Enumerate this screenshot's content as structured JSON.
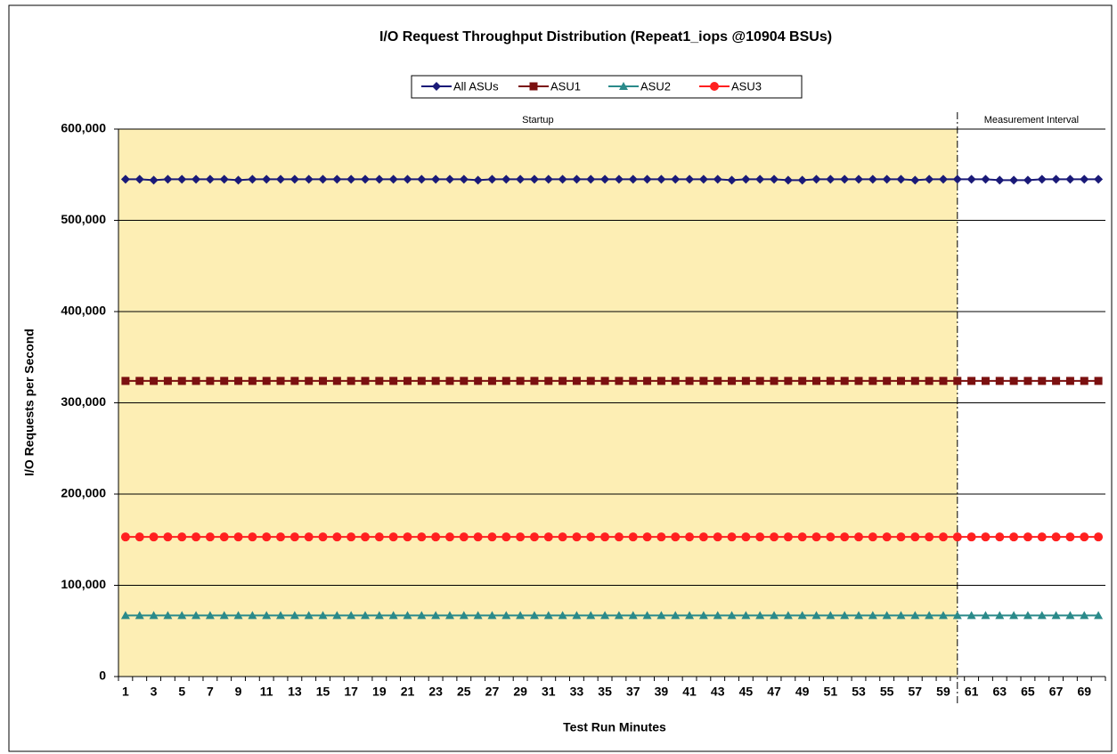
{
  "chart_data": {
    "type": "line",
    "title": "I/O Request Throughput Distribution (Repeat1_iops @10904 BSUs)",
    "x_label": "Test Run Minutes",
    "y_label": "I/O Requests per Second",
    "annotations": {
      "startup": "Startup",
      "measurement": "Measurement Interval"
    },
    "divider": 60,
    "shade_color": "#fdeeb4",
    "categories": [
      "1",
      null,
      "3",
      null,
      "5",
      null,
      "7",
      null,
      "9",
      null,
      "11",
      null,
      "13",
      null,
      "15",
      null,
      "17",
      null,
      "19",
      null,
      "21",
      null,
      "23",
      null,
      "25",
      null,
      "27",
      null,
      "29",
      null,
      "31",
      null,
      "33",
      null,
      "35",
      null,
      "37",
      null,
      "39",
      null,
      "41",
      null,
      "43",
      null,
      "45",
      null,
      "47",
      null,
      "49",
      null,
      "51",
      null,
      "53",
      null,
      "55",
      null,
      "57",
      null,
      "59",
      null,
      "61",
      null,
      "63",
      null,
      "65",
      null,
      "67",
      null,
      "69",
      null
    ],
    "ylim": [
      0,
      600000
    ],
    "yticks": [
      0,
      {
        "value": 100000,
        "label": "100,000"
      },
      {
        "value": 200000,
        "label": "200,000"
      },
      {
        "value": 300000,
        "label": "300,000"
      },
      {
        "value": 400000,
        "label": "400,000"
      },
      {
        "value": 500000,
        "label": "500,000"
      },
      {
        "value": 600000,
        "label": "600,000"
      }
    ],
    "grid": true,
    "series": [
      {
        "name": "All ASUs",
        "color": "#1a1a78",
        "marker": "diamond",
        "values": [
          545000,
          545000,
          544000,
          545000,
          545000,
          545000,
          545000,
          545000,
          544000,
          545000,
          545000,
          545000,
          545000,
          545000,
          545000,
          545000,
          545000,
          545000,
          545000,
          545000,
          545000,
          545000,
          545000,
          545000,
          545000,
          544000,
          545000,
          545000,
          545000,
          545000,
          545000,
          545000,
          545000,
          545000,
          545000,
          545000,
          545000,
          545000,
          545000,
          545000,
          545000,
          545000,
          545000,
          544000,
          545000,
          545000,
          545000,
          544000,
          544000,
          545000,
          545000,
          545000,
          545000,
          545000,
          545000,
          545000,
          544000,
          545000,
          545000,
          545000,
          545000,
          545000,
          544000,
          544000,
          544000,
          545000,
          545000,
          545000,
          545000,
          545000
        ]
      },
      {
        "name": "ASU1",
        "color": "#7b1010",
        "marker": "square",
        "values": [
          324000,
          324000,
          324000,
          324000,
          324000,
          324000,
          324000,
          324000,
          324000,
          324000,
          324000,
          324000,
          324000,
          324000,
          324000,
          324000,
          324000,
          324000,
          324000,
          324000,
          324000,
          324000,
          324000,
          324000,
          324000,
          324000,
          324000,
          324000,
          324000,
          324000,
          324000,
          324000,
          324000,
          324000,
          324000,
          324000,
          324000,
          324000,
          324000,
          324000,
          324000,
          324000,
          324000,
          324000,
          324000,
          324000,
          324000,
          324000,
          324000,
          324000,
          324000,
          324000,
          324000,
          324000,
          324000,
          324000,
          324000,
          324000,
          324000,
          324000,
          324000,
          324000,
          324000,
          324000,
          324000,
          324000,
          324000,
          324000,
          324000,
          324000
        ]
      },
      {
        "name": "ASU2",
        "color": "#2a8a8a",
        "marker": "triangle",
        "values": [
          67000,
          67000,
          67000,
          67000,
          67000,
          67000,
          67000,
          67000,
          67000,
          67000,
          67000,
          67000,
          67000,
          67000,
          67000,
          67000,
          67000,
          67000,
          67000,
          67000,
          67000,
          67000,
          67000,
          67000,
          67000,
          67000,
          67000,
          67000,
          67000,
          67000,
          67000,
          67000,
          67000,
          67000,
          67000,
          67000,
          67000,
          67000,
          67000,
          67000,
          67000,
          67000,
          67000,
          67000,
          67000,
          67000,
          67000,
          67000,
          67000,
          67000,
          67000,
          67000,
          67000,
          67000,
          67000,
          67000,
          67000,
          67000,
          67000,
          67000,
          67000,
          67000,
          67000,
          67000,
          67000,
          67000,
          67000,
          67000,
          67000,
          67000
        ]
      },
      {
        "name": "ASU3",
        "color": "#ff2020",
        "marker": "circle",
        "values": [
          153000,
          153000,
          153000,
          153000,
          153000,
          153000,
          153000,
          153000,
          153000,
          153000,
          153000,
          153000,
          153000,
          153000,
          153000,
          153000,
          153000,
          153000,
          153000,
          153000,
          153000,
          153000,
          153000,
          153000,
          153000,
          153000,
          153000,
          153000,
          153000,
          153000,
          153000,
          153000,
          153000,
          153000,
          153000,
          153000,
          153000,
          153000,
          153000,
          153000,
          153000,
          153000,
          153000,
          153000,
          153000,
          153000,
          153000,
          153000,
          153000,
          153000,
          153000,
          153000,
          153000,
          153000,
          153000,
          153000,
          153000,
          153000,
          153000,
          153000,
          153000,
          153000,
          153000,
          153000,
          153000,
          153000,
          153000,
          153000,
          153000,
          153000
        ]
      }
    ]
  }
}
